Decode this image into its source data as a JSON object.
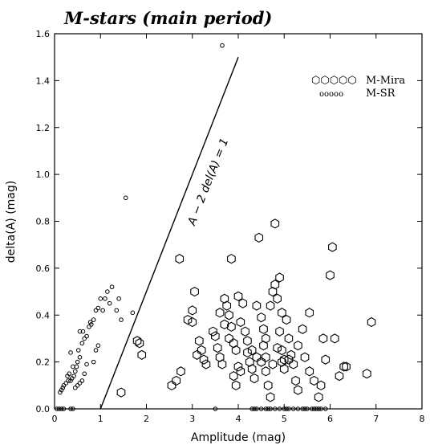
{
  "chart_data": {
    "type": "scatter",
    "title": "M-stars (main period)",
    "xlabel": "Amplitude (mag)",
    "ylabel": "delta(A) (mag)",
    "xlim": [
      0,
      8
    ],
    "ylim": [
      0,
      1.6
    ],
    "x_ticks": [
      "0",
      "1",
      "2",
      "3",
      "4",
      "5",
      "6",
      "7",
      "8"
    ],
    "y_ticks": [
      "0.0",
      "0.2",
      "0.4",
      "0.6",
      "0.8",
      "1.0",
      "1.2",
      "1.4",
      "1.6"
    ],
    "grid": false,
    "legend_position": "top-right",
    "annotation": {
      "text": "A − 2 del(A) = 1",
      "line": {
        "x1": 1.0,
        "y1": 0.0,
        "x2": 4.0,
        "y2": 1.5
      }
    },
    "series": [
      {
        "name": "M-Mira",
        "marker": "large-hexagon",
        "points": [
          [
            1.45,
            0.07
          ],
          [
            1.8,
            0.29
          ],
          [
            1.85,
            0.28
          ],
          [
            1.9,
            0.23
          ],
          [
            2.55,
            0.1
          ],
          [
            2.65,
            0.12
          ],
          [
            2.75,
            0.16
          ],
          [
            2.72,
            0.64
          ],
          [
            2.9,
            0.38
          ],
          [
            3.0,
            0.37
          ],
          [
            3.05,
            0.5
          ],
          [
            3.0,
            0.42
          ],
          [
            3.1,
            0.23
          ],
          [
            3.15,
            0.29
          ],
          [
            3.2,
            0.25
          ],
          [
            3.25,
            0.21
          ],
          [
            3.3,
            0.19
          ],
          [
            3.45,
            0.33
          ],
          [
            3.5,
            0.31
          ],
          [
            3.55,
            0.26
          ],
          [
            3.6,
            0.22
          ],
          [
            3.65,
            0.19
          ],
          [
            3.7,
            0.47
          ],
          [
            3.75,
            0.44
          ],
          [
            3.8,
            0.4
          ],
          [
            3.85,
            0.64
          ],
          [
            3.85,
            0.35
          ],
          [
            3.8,
            0.3
          ],
          [
            3.9,
            0.28
          ],
          [
            3.95,
            0.25
          ],
          [
            3.9,
            0.14
          ],
          [
            3.95,
            0.1
          ],
          [
            4.0,
            0.18
          ],
          [
            4.05,
            0.16
          ],
          [
            4.0,
            0.48
          ],
          [
            4.1,
            0.45
          ],
          [
            4.05,
            0.37
          ],
          [
            4.15,
            0.33
          ],
          [
            4.2,
            0.29
          ],
          [
            4.2,
            0.24
          ],
          [
            4.25,
            0.2
          ],
          [
            4.3,
            0.17
          ],
          [
            4.35,
            0.13
          ],
          [
            4.4,
            0.44
          ],
          [
            4.45,
            0.73
          ],
          [
            4.5,
            0.39
          ],
          [
            4.55,
            0.34
          ],
          [
            4.55,
            0.27
          ],
          [
            4.6,
            0.22
          ],
          [
            4.6,
            0.16
          ],
          [
            4.65,
            0.1
          ],
          [
            4.7,
            0.05
          ],
          [
            4.7,
            0.44
          ],
          [
            4.75,
            0.5
          ],
          [
            4.8,
            0.53
          ],
          [
            4.8,
            0.79
          ],
          [
            4.85,
            0.47
          ],
          [
            4.9,
            0.56
          ],
          [
            4.95,
            0.41
          ],
          [
            4.9,
            0.33
          ],
          [
            4.95,
            0.25
          ],
          [
            5.0,
            0.21
          ],
          [
            5.0,
            0.17
          ],
          [
            5.05,
            0.38
          ],
          [
            5.1,
            0.3
          ],
          [
            5.15,
            0.23
          ],
          [
            5.2,
            0.19
          ],
          [
            5.25,
            0.12
          ],
          [
            5.3,
            0.08
          ],
          [
            5.3,
            0.27
          ],
          [
            5.4,
            0.34
          ],
          [
            5.45,
            0.22
          ],
          [
            5.55,
            0.41
          ],
          [
            5.55,
            0.16
          ],
          [
            5.65,
            0.12
          ],
          [
            5.75,
            0.05
          ],
          [
            5.8,
            0.1
          ],
          [
            5.85,
            0.3
          ],
          [
            5.9,
            0.21
          ],
          [
            6.0,
            0.57
          ],
          [
            6.05,
            0.69
          ],
          [
            6.1,
            0.3
          ],
          [
            6.2,
            0.14
          ],
          [
            6.3,
            0.18
          ],
          [
            6.8,
            0.15
          ],
          [
            6.35,
            0.18
          ],
          [
            6.9,
            0.37
          ],
          [
            4.3,
            0.25
          ],
          [
            4.5,
            0.2
          ],
          [
            4.6,
            0.3
          ],
          [
            4.85,
            0.26
          ],
          [
            5.1,
            0.21
          ],
          [
            4.75,
            0.19
          ],
          [
            4.4,
            0.22
          ],
          [
            4.95,
            0.2
          ],
          [
            3.6,
            0.41
          ],
          [
            3.7,
            0.36
          ]
        ]
      },
      {
        "name": "M-SR",
        "marker": "small-circle",
        "points": [
          [
            0.05,
            0.0
          ],
          [
            0.1,
            0.0
          ],
          [
            0.15,
            0.0
          ],
          [
            0.2,
            0.0
          ],
          [
            0.35,
            0.0
          ],
          [
            0.4,
            0.0
          ],
          [
            0.12,
            0.07
          ],
          [
            0.15,
            0.08
          ],
          [
            0.18,
            0.09
          ],
          [
            0.2,
            0.1
          ],
          [
            0.25,
            0.11
          ],
          [
            0.3,
            0.12
          ],
          [
            0.35,
            0.12
          ],
          [
            0.28,
            0.14
          ],
          [
            0.32,
            0.15
          ],
          [
            0.38,
            0.13
          ],
          [
            0.42,
            0.14
          ],
          [
            0.45,
            0.16
          ],
          [
            0.4,
            0.18
          ],
          [
            0.48,
            0.18
          ],
          [
            0.5,
            0.2
          ],
          [
            0.55,
            0.22
          ],
          [
            0.35,
            0.24
          ],
          [
            0.52,
            0.25
          ],
          [
            0.6,
            0.28
          ],
          [
            0.65,
            0.3
          ],
          [
            0.62,
            0.33
          ],
          [
            0.7,
            0.31
          ],
          [
            0.75,
            0.35
          ],
          [
            0.78,
            0.37
          ],
          [
            0.8,
            0.36
          ],
          [
            0.85,
            0.38
          ],
          [
            0.55,
            0.33
          ],
          [
            0.9,
            0.42
          ],
          [
            0.95,
            0.43
          ],
          [
            1.0,
            0.47
          ],
          [
            1.05,
            0.42
          ],
          [
            1.1,
            0.47
          ],
          [
            1.15,
            0.5
          ],
          [
            1.2,
            0.45
          ],
          [
            1.25,
            0.52
          ],
          [
            1.35,
            0.42
          ],
          [
            1.4,
            0.47
          ],
          [
            1.55,
            0.9
          ],
          [
            1.7,
            0.41
          ],
          [
            1.45,
            0.38
          ],
          [
            0.95,
            0.27
          ],
          [
            0.9,
            0.25
          ],
          [
            0.85,
            0.2
          ],
          [
            0.7,
            0.19
          ],
          [
            0.65,
            0.15
          ],
          [
            0.6,
            0.12
          ],
          [
            0.55,
            0.11
          ],
          [
            0.5,
            0.1
          ],
          [
            0.45,
            0.09
          ],
          [
            3.65,
            1.55
          ],
          [
            3.5,
            0.0
          ],
          [
            4.3,
            0.0
          ],
          [
            4.4,
            0.0
          ],
          [
            4.5,
            0.0
          ],
          [
            4.6,
            0.0
          ],
          [
            4.7,
            0.0
          ],
          [
            4.8,
            0.0
          ],
          [
            4.9,
            0.0
          ],
          [
            5.0,
            0.0
          ],
          [
            5.1,
            0.0
          ],
          [
            5.2,
            0.0
          ],
          [
            5.3,
            0.0
          ],
          [
            5.4,
            0.0
          ],
          [
            5.5,
            0.0
          ],
          [
            5.6,
            0.0
          ],
          [
            5.7,
            0.0
          ],
          [
            5.8,
            0.0
          ],
          [
            5.9,
            0.0
          ],
          [
            4.35,
            0.0
          ],
          [
            4.65,
            0.0
          ],
          [
            5.05,
            0.0
          ],
          [
            5.45,
            0.0
          ],
          [
            5.65,
            0.0
          ],
          [
            5.75,
            0.0
          ]
        ]
      }
    ],
    "legend_symbols": {
      "mira": "⬡⬡⬡⬡⬡",
      "sr": "ooooo"
    }
  }
}
